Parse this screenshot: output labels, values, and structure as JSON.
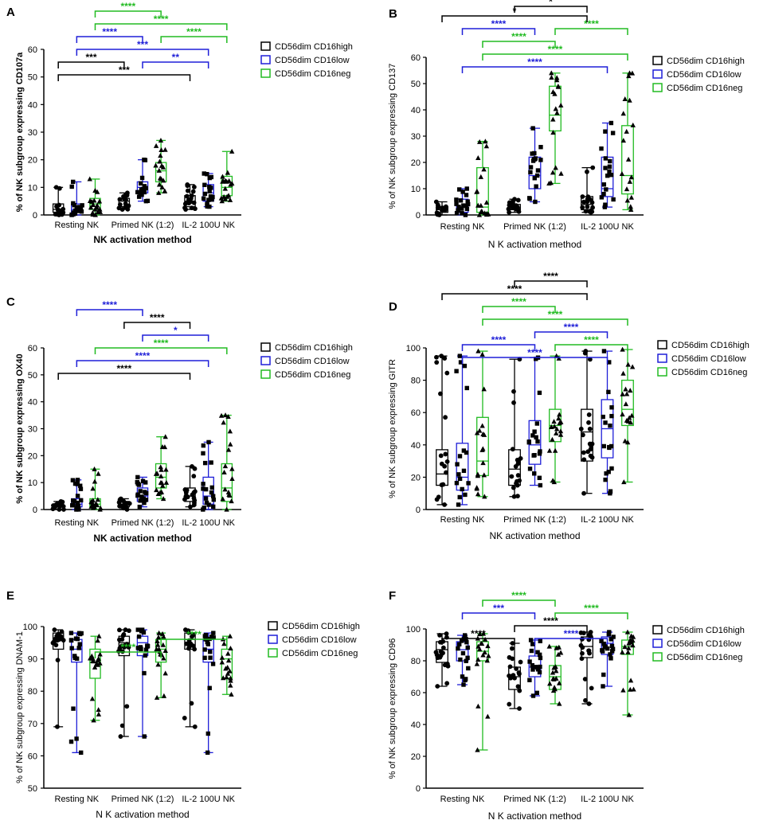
{
  "figure": {
    "xlabel_bold": "NK activation method",
    "xlabel_plain": "N K activation method",
    "groups": [
      "Resting NK",
      "Primed NK (1:2)",
      "IL-2 100U NK"
    ],
    "legend": [
      "CD56dim CD16high",
      "CD56dim CD16low",
      "CD56dim CD16neg"
    ],
    "colors": {
      "high": "#000000",
      "low": "#1f1fd8",
      "neg": "#22bb22"
    }
  },
  "chart_data": [
    {
      "panel": "A",
      "type": "box",
      "title": "",
      "ylabel": "% of NK subgroup expressing CD107a",
      "ylim": [
        0,
        60
      ],
      "yticks": [
        0,
        10,
        20,
        30,
        40,
        50,
        60
      ],
      "xlabel": "NK activation method",
      "series": [
        {
          "name": "CD56dim CD16high",
          "box": [
            [
              0,
              1,
              2,
              4,
              10
            ],
            [
              2,
              3,
              5,
              6,
              8
            ],
            [
              2,
              3,
              5,
              7,
              11
            ]
          ]
        },
        {
          "name": "CD56dim CD16low",
          "box": [
            [
              0,
              1,
              2,
              4,
              12
            ],
            [
              5,
              8,
              10,
              12,
              20
            ],
            [
              3,
              5,
              8,
              11,
              15
            ]
          ]
        },
        {
          "name": "CD56dim CD16neg",
          "box": [
            [
              0,
              2,
              4,
              6,
              13
            ],
            [
              8,
              12,
              16,
              19,
              27
            ],
            [
              5,
              7,
              10,
              14,
              23
            ]
          ]
        }
      ],
      "significance": [
        {
          "from": [
            0,
            0
          ],
          "to": [
            2,
            0
          ],
          "label": "***",
          "color": "high"
        },
        {
          "from": [
            0,
            0
          ],
          "to": [
            1,
            0
          ],
          "label": "***",
          "color": "high"
        },
        {
          "from": [
            0,
            1
          ],
          "to": [
            2,
            1
          ],
          "label": "***",
          "color": "low"
        },
        {
          "from": [
            0,
            1
          ],
          "to": [
            1,
            1
          ],
          "label": "****",
          "color": "low"
        },
        {
          "from": [
            1,
            1
          ],
          "to": [
            2,
            1
          ],
          "label": "**",
          "color": "low"
        },
        {
          "from": [
            0,
            2
          ],
          "to": [
            2,
            2
          ],
          "label": "****",
          "color": "neg"
        },
        {
          "from": [
            0,
            2
          ],
          "to": [
            1,
            2
          ],
          "label": "****",
          "color": "neg"
        },
        {
          "from": [
            1,
            2
          ],
          "to": [
            2,
            2
          ],
          "label": "****",
          "color": "neg"
        }
      ]
    },
    {
      "panel": "B",
      "type": "box",
      "title": "",
      "ylabel": "% of NK subgroup expressing CD137",
      "ylim": [
        0,
        60
      ],
      "yticks": [
        0,
        10,
        20,
        30,
        40,
        50,
        60
      ],
      "xlabel": "N K activation method",
      "series": [
        {
          "name": "CD56dim CD16high",
          "box": [
            [
              0,
              1,
              2,
              3,
              5
            ],
            [
              1,
              2,
              3,
              4,
              6
            ],
            [
              1,
              2,
              4,
              7,
              18
            ]
          ]
        },
        {
          "name": "CD56dim CD16low",
          "box": [
            [
              0,
              1,
              3,
              6,
              10
            ],
            [
              5,
              10,
              15,
              22,
              33
            ],
            [
              3,
              7,
              10,
              22,
              35
            ]
          ]
        },
        {
          "name": "CD56dim CD16neg",
          "box": [
            [
              0,
              1,
              3,
              18,
              28
            ],
            [
              12,
              32,
              38,
              49,
              54
            ],
            [
              2,
              8,
              15,
              34,
              54
            ]
          ]
        }
      ],
      "significance": [
        {
          "from": [
            0,
            1
          ],
          "to": [
            2,
            1
          ],
          "label": "****",
          "color": "low"
        },
        {
          "from": [
            0,
            2
          ],
          "to": [
            2,
            2
          ],
          "label": "****",
          "color": "neg"
        },
        {
          "from": [
            0,
            2
          ],
          "to": [
            1,
            2
          ],
          "label": "****",
          "color": "neg"
        },
        {
          "from": [
            1,
            2
          ],
          "to": [
            2,
            2
          ],
          "label": "****",
          "color": "neg"
        },
        {
          "from": [
            0,
            0
          ],
          "to": [
            2,
            0
          ],
          "label": "*",
          "color": "high"
        },
        {
          "from": [
            1,
            0
          ],
          "to": [
            2,
            0
          ],
          "label": "*",
          "color": "high"
        },
        {
          "from": [
            0,
            1
          ],
          "to": [
            1,
            1
          ],
          "label": "****",
          "color": "low"
        }
      ]
    },
    {
      "panel": "C",
      "type": "box",
      "title": "",
      "ylabel": "% of NK subgroup expressing OX40",
      "ylim": [
        0,
        60
      ],
      "yticks": [
        0,
        10,
        20,
        30,
        40,
        50,
        60
      ],
      "xlabel": "NK activation method",
      "series": [
        {
          "name": "CD56dim CD16high",
          "box": [
            [
              0,
              1,
              1,
              2,
              3
            ],
            [
              0,
              1,
              2,
              3,
              4
            ],
            [
              1,
              3,
              5,
              8,
              16
            ]
          ]
        },
        {
          "name": "CD56dim CD16low",
          "box": [
            [
              0,
              1,
              2,
              4,
              11
            ],
            [
              1,
              3,
              5,
              8,
              12
            ],
            [
              0,
              2,
              5,
              12,
              25
            ]
          ]
        },
        {
          "name": "CD56dim CD16neg",
          "box": [
            [
              0,
              1,
              2,
              4,
              15
            ],
            [
              4,
              8,
              12,
              17,
              27
            ],
            [
              0,
              3,
              8,
              17,
              35
            ]
          ]
        }
      ],
      "significance": [
        {
          "from": [
            0,
            0
          ],
          "to": [
            2,
            0
          ],
          "label": "****",
          "color": "high"
        },
        {
          "from": [
            0,
            1
          ],
          "to": [
            2,
            1
          ],
          "label": "****",
          "color": "low"
        },
        {
          "from": [
            0,
            2
          ],
          "to": [
            2,
            2
          ],
          "label": "****",
          "color": "neg"
        },
        {
          "from": [
            1,
            1
          ],
          "to": [
            2,
            1
          ],
          "label": "*",
          "color": "low"
        },
        {
          "from": [
            1,
            0
          ],
          "to": [
            2,
            0
          ],
          "label": "****",
          "color": "high"
        },
        {
          "from": [
            0,
            1
          ],
          "to": [
            1,
            1
          ],
          "label": "****",
          "color": "low"
        }
      ]
    },
    {
      "panel": "D",
      "type": "box",
      "title": "",
      "ylabel": "% of NK subgroup expressing GITR",
      "ylim": [
        0,
        100
      ],
      "yticks": [
        0,
        20,
        40,
        60,
        80,
        100
      ],
      "xlabel": "NK activation method",
      "series": [
        {
          "name": "CD56dim CD16high",
          "box": [
            [
              3,
              15,
              22,
              37,
              95
            ],
            [
              8,
              15,
              25,
              37,
              93
            ],
            [
              10,
              30,
              48,
              62,
              98
            ]
          ]
        },
        {
          "name": "CD56dim CD16low",
          "box": [
            [
              3,
              12,
              20,
              41,
              95
            ],
            [
              15,
              28,
              40,
              55,
              94
            ],
            [
              10,
              32,
              50,
              68,
              98
            ]
          ]
        },
        {
          "name": "CD56dim CD16neg",
          "box": [
            [
              8,
              21,
              30,
              57,
              98
            ],
            [
              17,
              42,
              52,
              62,
              95
            ],
            [
              17,
              52,
              62,
              80,
              99
            ]
          ]
        }
      ],
      "significance": [
        {
          "from": [
            0,
            1
          ],
          "to": [
            2,
            1
          ],
          "label": "****",
          "color": "low"
        },
        {
          "from": [
            0,
            1
          ],
          "to": [
            1,
            1
          ],
          "label": "****",
          "color": "low"
        },
        {
          "from": [
            1,
            1
          ],
          "to": [
            2,
            1
          ],
          "label": "****",
          "color": "low"
        },
        {
          "from": [
            0,
            2
          ],
          "to": [
            2,
            2
          ],
          "label": "****",
          "color": "neg"
        },
        {
          "from": [
            0,
            2
          ],
          "to": [
            1,
            2
          ],
          "label": "****",
          "color": "neg"
        },
        {
          "from": [
            1,
            2
          ],
          "to": [
            2,
            2
          ],
          "label": "****",
          "color": "neg"
        },
        {
          "from": [
            0,
            0
          ],
          "to": [
            2,
            0
          ],
          "label": "****",
          "color": "high"
        },
        {
          "from": [
            1,
            0
          ],
          "to": [
            2,
            0
          ],
          "label": "****",
          "color": "high"
        }
      ]
    },
    {
      "panel": "E",
      "type": "box",
      "title": "",
      "ylabel": "% of NK subgroup expressing DNAM-1",
      "ylim": [
        50,
        100
      ],
      "yticks": [
        50,
        60,
        70,
        80,
        90,
        100
      ],
      "xlabel": "N K activation method",
      "series": [
        {
          "name": "CD56dim CD16high",
          "box": [
            [
              69,
              93,
              96,
              98,
              99
            ],
            [
              66,
              91,
              95,
              97,
              99
            ],
            [
              69,
              93,
              96,
              98,
              99
            ]
          ]
        },
        {
          "name": "CD56dim CD16low",
          "box": [
            [
              61,
              89,
              93,
              96,
              98
            ],
            [
              66,
              91,
              95,
              97,
              99
            ],
            [
              61,
              89,
              93,
              96,
              98
            ]
          ]
        },
        {
          "name": "CD56dim CD16neg",
          "box": [
            [
              71,
              84,
              89,
              93,
              97
            ],
            [
              78,
              89,
              93,
              96,
              98
            ],
            [
              79,
              84,
              90,
              93,
              97
            ]
          ]
        }
      ],
      "significance": [
        {
          "from": [
            0,
            2
          ],
          "to": [
            1,
            2
          ],
          "label": "****",
          "color": "neg"
        },
        {
          "from": [
            1,
            2
          ],
          "to": [
            2,
            2
          ],
          "label": "****",
          "color": "neg"
        }
      ]
    },
    {
      "panel": "F",
      "type": "box",
      "title": "",
      "ylabel": "% of NK subgroup expressing CD96",
      "ylim": [
        0,
        100
      ],
      "yticks": [
        0,
        20,
        40,
        60,
        80,
        100
      ],
      "xlabel": "N K activation method",
      "series": [
        {
          "name": "CD56dim CD16high",
          "box": [
            [
              64,
              79,
              87,
              92,
              97
            ],
            [
              50,
              62,
              70,
              76,
              91
            ],
            [
              53,
              82,
              89,
              95,
              98
            ]
          ]
        },
        {
          "name": "CD56dim CD16low",
          "box": [
            [
              65,
              80,
              87,
              92,
              96
            ],
            [
              58,
              70,
              76,
              83,
              93
            ],
            [
              64,
              84,
              91,
              95,
              98
            ]
          ]
        },
        {
          "name": "CD56dim CD16neg",
          "box": [
            [
              24,
              80,
              86,
              92,
              97
            ],
            [
              53,
              62,
              70,
              77,
              89
            ],
            [
              46,
              84,
              89,
              93,
              98
            ]
          ]
        }
      ],
      "significance": [
        {
          "from": [
            0,
            0
          ],
          "to": [
            1,
            0
          ],
          "label": "****",
          "color": "high"
        },
        {
          "from": [
            1,
            0
          ],
          "to": [
            2,
            0
          ],
          "label": "****",
          "color": "high"
        },
        {
          "from": [
            0,
            1
          ],
          "to": [
            1,
            1
          ],
          "label": "***",
          "color": "low"
        },
        {
          "from": [
            1,
            1
          ],
          "to": [
            2,
            1
          ],
          "label": "****",
          "color": "low"
        },
        {
          "from": [
            0,
            2
          ],
          "to": [
            1,
            2
          ],
          "label": "****",
          "color": "neg"
        },
        {
          "from": [
            1,
            2
          ],
          "to": [
            2,
            2
          ],
          "label": "****",
          "color": "neg"
        }
      ]
    }
  ]
}
